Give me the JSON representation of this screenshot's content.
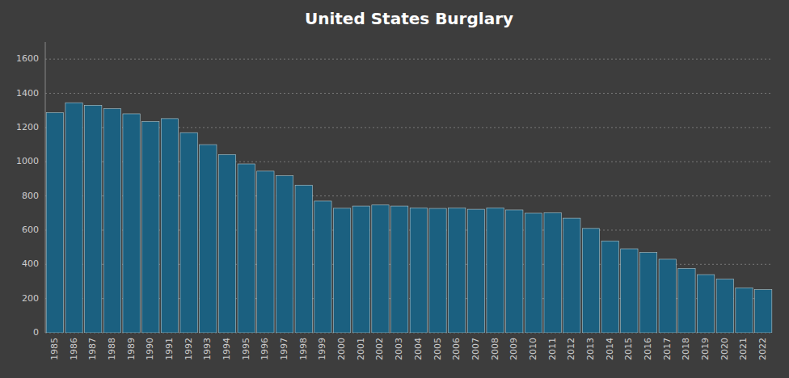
{
  "chart_data": {
    "type": "bar",
    "title": "United States Burglary",
    "categories": [
      "1985",
      "1986",
      "1987",
      "1988",
      "1989",
      "1990",
      "1991",
      "1992",
      "1993",
      "1994",
      "1995",
      "1996",
      "1997",
      "1998",
      "1999",
      "2000",
      "2001",
      "2002",
      "2003",
      "2004",
      "2005",
      "2006",
      "2007",
      "2008",
      "2009",
      "2010",
      "2011",
      "2012",
      "2013",
      "2014",
      "2015",
      "2016",
      "2017",
      "2018",
      "2019",
      "2020",
      "2021",
      "2022"
    ],
    "values": [
      1287,
      1345,
      1330,
      1310,
      1280,
      1235,
      1252,
      1170,
      1100,
      1042,
      987,
      945,
      918,
      863,
      770,
      728,
      741,
      747,
      741,
      730,
      727,
      729,
      722,
      730,
      718,
      699,
      702,
      670,
      610,
      537,
      491,
      469,
      430,
      376,
      340,
      314,
      263,
      252
    ],
    "color": "#1b6080",
    "ylim": [
      0,
      1700
    ],
    "yticks": [
      0,
      200,
      400,
      600,
      800,
      1000,
      1200,
      1400,
      1600
    ],
    "grid": true
  }
}
